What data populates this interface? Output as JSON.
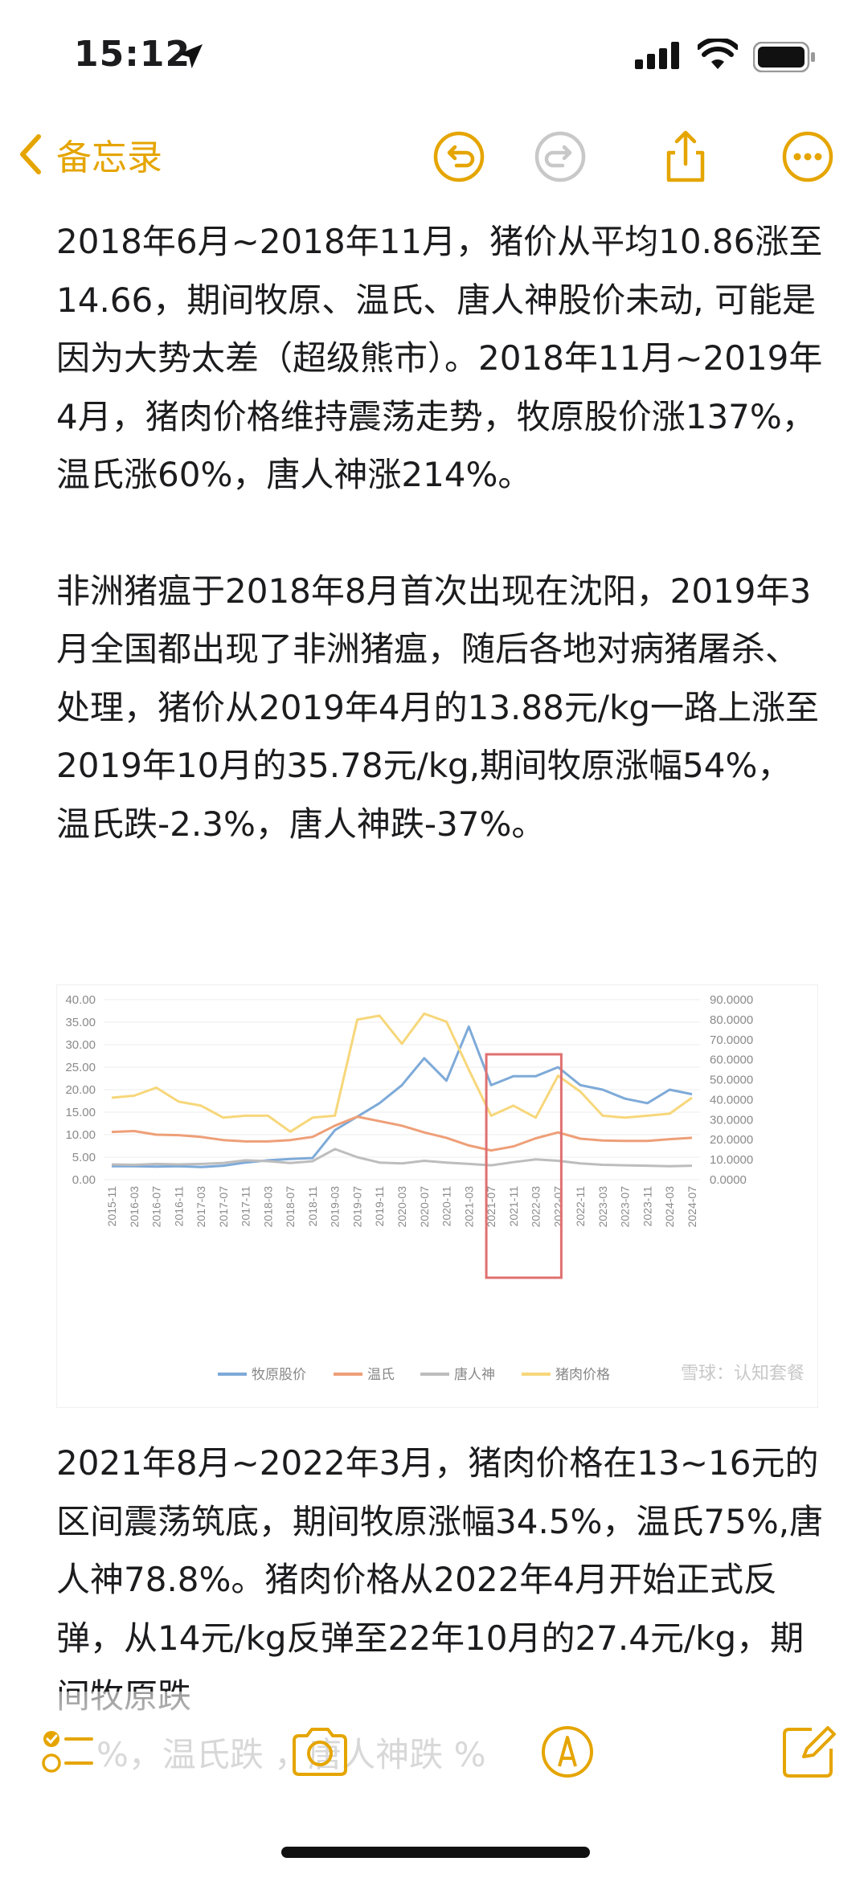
{
  "status_bar": {
    "time": "15:12"
  },
  "nav": {
    "back_label": "备忘录"
  },
  "note": {
    "paragraph_1": "2018年6月~2018年11月，猪价从平均10.86涨至14.66，期间牧原、温氏、唐人神股价未动, 可能是因为大势太差（超级熊市）。2018年11月~2019年4月，猪肉价格维持震荡走势，牧原股价涨137%，温氏涨60%，唐人神涨214%。",
    "paragraph_2": "非洲猪瘟于2018年8月首次出现在沈阳，2019年3月全国都出现了非洲猪瘟，随后各地对病猪屠杀、处理，猪价从2019年4月的13.88元/kg一路上涨至2019年10月的35.78元/kg,期间牧原涨幅54%，温氏跌-2.3%，唐人神跌-37%。",
    "paragraph_3": "2021年8月~2022年3月，猪肉价格在13~16元的区间震荡筑底，期间牧原涨幅34.5%，温氏75%,唐人神78.8%。猪肉价格从2022年4月开始正式反弹，从14元/kg反弹至22年10月的27.4元/kg，期间牧原跌",
    "faded_line": "%，温氏跌 ，唐人神跌 %"
  },
  "chart_data": {
    "type": "line",
    "x": [
      "2015-11",
      "2016-03",
      "2016-07",
      "2016-11",
      "2017-03",
      "2017-07",
      "2017-11",
      "2018-03",
      "2018-07",
      "2018-11",
      "2019-03",
      "2019-07",
      "2019-11",
      "2020-03",
      "2020-07",
      "2020-11",
      "2021-03",
      "2021-07",
      "2021-11",
      "2022-03",
      "2022-07",
      "2022-11",
      "2023-03",
      "2023-07",
      "2023-11",
      "2024-03",
      "2024-07"
    ],
    "left_axis": {
      "ylim": [
        0,
        40
      ],
      "ticks": [
        "0.00",
        "5.00",
        "10.00",
        "15.00",
        "20.00",
        "25.00",
        "30.00",
        "35.00",
        "40.00"
      ]
    },
    "right_axis": {
      "ylim": [
        0,
        90
      ],
      "ticks": [
        "0.0000",
        "10.0000",
        "20.0000",
        "30.0000",
        "40.0000",
        "50.0000",
        "60.0000",
        "70.0000",
        "80.0000",
        "90.0000"
      ]
    },
    "series": [
      {
        "name": "牧原股价",
        "axis": "left",
        "color": "#7eaad8",
        "values": [
          3.0,
          3.0,
          2.9,
          3.0,
          2.8,
          3.1,
          3.8,
          4.3,
          4.6,
          4.8,
          11,
          14,
          17,
          21,
          27,
          22,
          34,
          21,
          23,
          23,
          25,
          21,
          20,
          18,
          17,
          20,
          19
        ]
      },
      {
        "name": "温氏",
        "axis": "left",
        "color": "#ee9f78",
        "values": [
          10.6,
          10.8,
          10.0,
          9.9,
          9.5,
          8.8,
          8.5,
          8.5,
          8.8,
          9.5,
          12,
          14,
          13,
          12,
          10.5,
          9.3,
          7.6,
          6.5,
          7.4,
          9.2,
          10.5,
          9.1,
          8.7,
          8.6,
          8.6,
          9.0,
          9.3
        ]
      },
      {
        "name": "唐人神",
        "axis": "left",
        "color": "#bdbdbd",
        "values": [
          3.4,
          3.3,
          3.5,
          3.4,
          3.5,
          3.7,
          4.3,
          4.1,
          3.7,
          4.1,
          6.8,
          5.0,
          3.8,
          3.6,
          4.2,
          3.8,
          3.5,
          3.2,
          3.9,
          4.5,
          4.2,
          3.6,
          3.3,
          3.2,
          3.1,
          3.0,
          3.1
        ]
      },
      {
        "name": "猪肉价格",
        "axis": "right",
        "color": "#f7d77b",
        "values": [
          41,
          42,
          46,
          39,
          37,
          31,
          32,
          32,
          24,
          31,
          32,
          80,
          82,
          68,
          83,
          79,
          55,
          32,
          37,
          31,
          52,
          44,
          32,
          31,
          32,
          33,
          41
        ]
      }
    ],
    "highlight_range": [
      "2021-07",
      "2022-07"
    ],
    "highlight_color": "#e07070",
    "watermark": "雪球：认知套餐"
  }
}
